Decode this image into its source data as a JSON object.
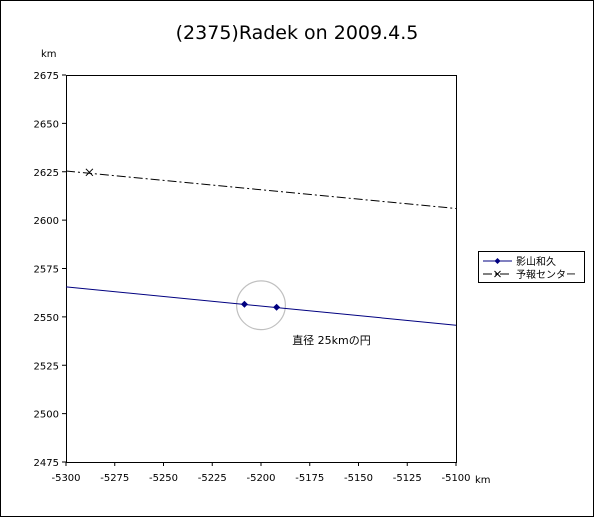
{
  "chart_data": {
    "type": "line",
    "title": "(2375)Radek on 2009.4.5",
    "xlabel": "km",
    "ylabel": "km",
    "xlim": [
      -5300,
      -5100
    ],
    "ylim": [
      2475,
      2675
    ],
    "xticks": [
      -5300,
      -5275,
      -5250,
      -5225,
      -5200,
      -5175,
      -5150,
      -5125,
      -5100
    ],
    "yticks": [
      2475,
      2500,
      2525,
      2550,
      2575,
      2600,
      2625,
      2650,
      2675
    ],
    "grid": false,
    "legend_position": "right",
    "series": [
      {
        "name": "影山和久",
        "color": "#000080",
        "line_style": "solid",
        "marker": "diamond",
        "line": [
          [
            -5300,
            2565.5
          ],
          [
            -5100,
            2545.7
          ]
        ],
        "points": [
          [
            -5208.5,
            2556.5
          ],
          [
            -5192,
            2555
          ]
        ]
      },
      {
        "name": "予報センター",
        "color": "#000000",
        "line_style": "dash-dot",
        "marker": "x",
        "line": [
          [
            -5300,
            2625.4
          ],
          [
            -5100,
            2606
          ]
        ],
        "points": [
          [
            -5288,
            2624.7
          ]
        ]
      }
    ],
    "annotations": [
      {
        "text": "直径 25kmの円",
        "x": -5184,
        "y": 2536
      }
    ],
    "circle": {
      "center": [
        -5200,
        2556
      ],
      "diameter": 25,
      "color": "#c0c0c0"
    }
  }
}
